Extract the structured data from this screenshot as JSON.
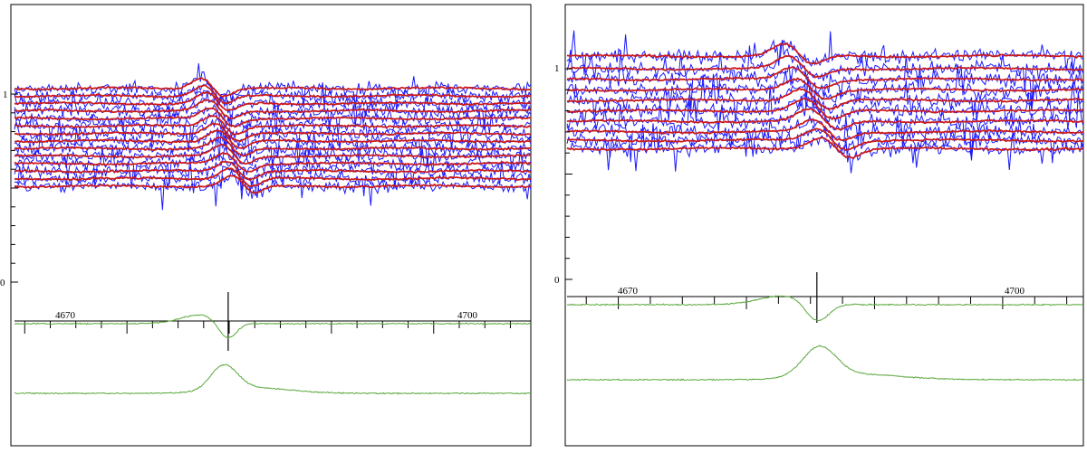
{
  "colors": {
    "observed": "#1a1aff",
    "model": "#cc1a1a",
    "residual": "#5aa83c",
    "axis": "#000000"
  },
  "chart_data": [
    {
      "type": "line",
      "panel": "left",
      "title": "",
      "xlabel": "",
      "ylabel": "",
      "xlim": [
        4659,
        4709.5
      ],
      "x_tick_labels": [
        4670,
        4700
      ],
      "y_tick_labels": [
        1,
        0
      ],
      "series": [
        {
          "role": "observed_spectra",
          "count": 14,
          "continuum_levels": [
            1.03,
            0.99,
            0.95,
            0.91,
            0.87,
            0.83,
            0.79,
            0.75,
            0.71,
            0.67,
            0.63,
            0.59,
            0.55,
            0.51
          ]
        },
        {
          "role": "model_fits",
          "count": 14
        },
        {
          "role": "residual_mean",
          "feature": "absorption",
          "center": 4679.8,
          "depth": 0.18
        },
        {
          "role": "residual_difference",
          "feature": "emission",
          "center": 4679.5,
          "height": 0.25
        }
      ],
      "markers": [
        {
          "x": 4679.9,
          "label": ""
        }
      ]
    },
    {
      "type": "line",
      "panel": "right",
      "title": "",
      "xlabel": "",
      "ylabel": "",
      "xlim": [
        4666,
        4706.3
      ],
      "x_tick_labels": [
        4670,
        4700
      ],
      "y_tick_labels": [
        1,
        0
      ],
      "series": [
        {
          "role": "observed_spectra",
          "count": 10,
          "continuum_levels": [
            1.06,
            1.0,
            0.95,
            0.9,
            0.85,
            0.8,
            0.75,
            0.7,
            0.66,
            0.62
          ]
        },
        {
          "role": "model_fits",
          "count": 10
        },
        {
          "role": "residual_mean",
          "feature": "absorption",
          "center": 4685.5,
          "depth": 0.2
        },
        {
          "role": "residual_difference",
          "feature": "emission",
          "center": 4685.7,
          "height": 0.3
        }
      ],
      "markers": [
        {
          "x": 4685.5,
          "label": ""
        }
      ]
    }
  ]
}
